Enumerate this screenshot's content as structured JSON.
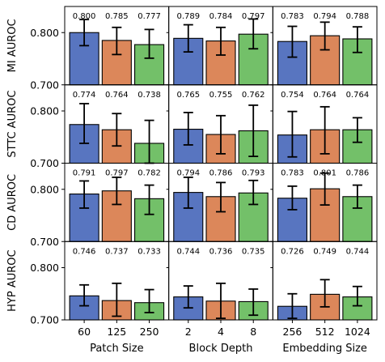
{
  "chart_data": {
    "type": "bar",
    "layout": "grid-4-rows-by-3-columns",
    "ylim": [
      0.7,
      0.85
    ],
    "yticks": [
      0.7,
      0.8
    ],
    "ytick_labels": [
      "0.700",
      "0.800"
    ],
    "colors": [
      "#5875c0",
      "#dc875a",
      "#73c069"
    ],
    "rows": [
      {
        "ylabel": "MI AUROC"
      },
      {
        "ylabel": "STTC AUROC"
      },
      {
        "ylabel": "CD AUROC"
      },
      {
        "ylabel": "HYP AUROC"
      }
    ],
    "columns": [
      {
        "xlabel": "Patch Size",
        "categories": [
          "60",
          "125",
          "250"
        ]
      },
      {
        "xlabel": "Block Depth",
        "categories": [
          "2",
          "4",
          "8"
        ]
      },
      {
        "xlabel": "Embedding Size",
        "categories": [
          "256",
          "512",
          "1024"
        ]
      }
    ],
    "panels": [
      {
        "row": 0,
        "col": 0,
        "values": [
          0.8,
          0.785,
          0.777
        ],
        "err_low": [
          0.775,
          0.758,
          0.751
        ],
        "err_high": [
          0.825,
          0.81,
          0.806
        ],
        "labels": [
          "0.800",
          "0.785",
          "0.777"
        ]
      },
      {
        "row": 0,
        "col": 1,
        "values": [
          0.789,
          0.784,
          0.797
        ],
        "err_low": [
          0.763,
          0.757,
          0.769
        ],
        "err_high": [
          0.815,
          0.81,
          0.826
        ],
        "labels": [
          "0.789",
          "0.784",
          "0.797"
        ]
      },
      {
        "row": 0,
        "col": 2,
        "values": [
          0.783,
          0.794,
          0.788
        ],
        "err_low": [
          0.753,
          0.767,
          0.762
        ],
        "err_high": [
          0.812,
          0.82,
          0.811
        ],
        "labels": [
          "0.783",
          "0.794",
          "0.788"
        ]
      },
      {
        "row": 1,
        "col": 0,
        "values": [
          0.774,
          0.764,
          0.738
        ],
        "err_low": [
          0.738,
          0.733,
          0.7
        ],
        "err_high": [
          0.814,
          0.795,
          0.782
        ],
        "labels": [
          "0.774",
          "0.764",
          "0.738"
        ]
      },
      {
        "row": 1,
        "col": 1,
        "values": [
          0.765,
          0.755,
          0.762
        ],
        "err_low": [
          0.735,
          0.718,
          0.713
        ],
        "err_high": [
          0.797,
          0.791,
          0.811
        ],
        "labels": [
          "0.765",
          "0.755",
          "0.762"
        ]
      },
      {
        "row": 1,
        "col": 2,
        "values": [
          0.754,
          0.764,
          0.764
        ],
        "err_low": [
          0.712,
          0.718,
          0.74
        ],
        "err_high": [
          0.799,
          0.808,
          0.787
        ],
        "labels": [
          "0.754",
          "0.764",
          "0.764"
        ]
      },
      {
        "row": 2,
        "col": 0,
        "values": [
          0.791,
          0.797,
          0.782
        ],
        "err_low": [
          0.764,
          0.771,
          0.752
        ],
        "err_high": [
          0.816,
          0.823,
          0.808
        ],
        "labels": [
          "0.791",
          "0.797",
          "0.782"
        ]
      },
      {
        "row": 2,
        "col": 1,
        "values": [
          0.794,
          0.786,
          0.793
        ],
        "err_low": [
          0.764,
          0.757,
          0.771
        ],
        "err_high": [
          0.823,
          0.813,
          0.817
        ],
        "labels": [
          "0.794",
          "0.786",
          "0.793"
        ]
      },
      {
        "row": 2,
        "col": 2,
        "values": [
          0.783,
          0.801,
          0.786
        ],
        "err_low": [
          0.761,
          0.77,
          0.764
        ],
        "err_high": [
          0.806,
          0.831,
          0.808
        ],
        "labels": [
          "0.783",
          "0.801",
          "0.786"
        ]
      },
      {
        "row": 3,
        "col": 0,
        "values": [
          0.746,
          0.737,
          0.733
        ],
        "err_low": [
          0.727,
          0.707,
          0.714
        ],
        "err_high": [
          0.767,
          0.77,
          0.758
        ],
        "labels": [
          "0.746",
          "0.737",
          "0.733"
        ]
      },
      {
        "row": 3,
        "col": 1,
        "values": [
          0.744,
          0.736,
          0.735
        ],
        "err_low": [
          0.723,
          0.703,
          0.709
        ],
        "err_high": [
          0.765,
          0.77,
          0.759
        ],
        "labels": [
          "0.744",
          "0.736",
          "0.735"
        ]
      },
      {
        "row": 3,
        "col": 2,
        "values": [
          0.726,
          0.749,
          0.744
        ],
        "err_low": [
          0.703,
          0.725,
          0.727
        ],
        "err_high": [
          0.75,
          0.777,
          0.764
        ],
        "labels": [
          "0.726",
          "0.749",
          "0.744"
        ]
      }
    ]
  }
}
